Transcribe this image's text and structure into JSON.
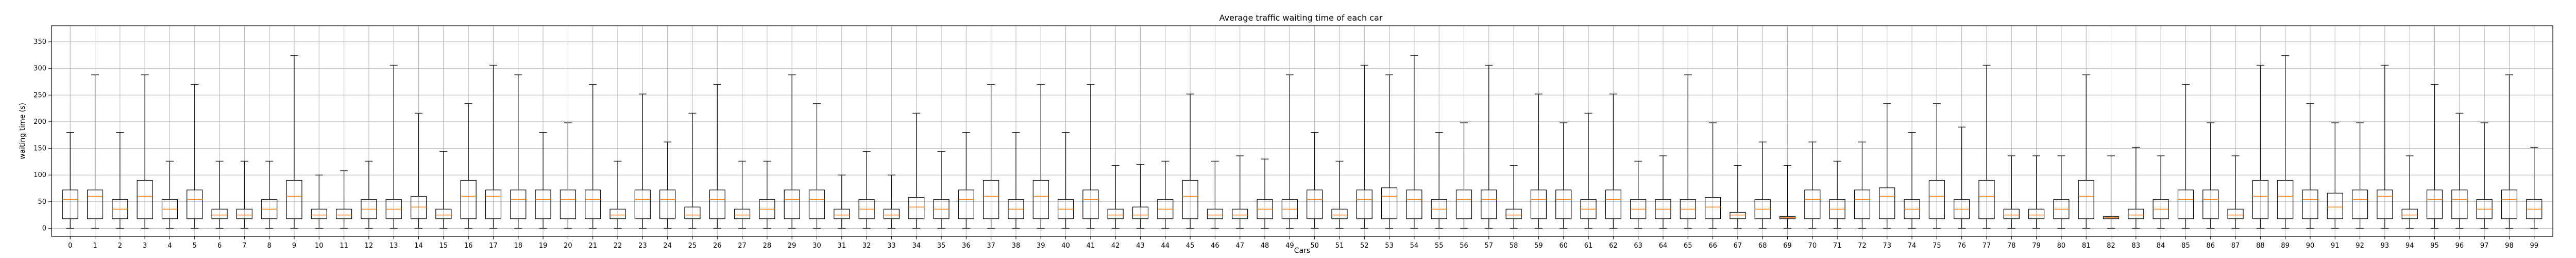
{
  "chart_data": {
    "type": "box",
    "title": "Average traffic waiting time of each car",
    "xlabel": "Cars",
    "ylabel": "waiting time (s)",
    "ylim": [
      -15,
      380
    ],
    "yticks": [
      0,
      50,
      100,
      150,
      200,
      250,
      300,
      350
    ],
    "grid": true,
    "colors": {
      "box": "#000000",
      "median": "#ff7f0e",
      "grid": "#b0b0b0"
    },
    "categories": [
      "0",
      "1",
      "2",
      "3",
      "4",
      "5",
      "6",
      "7",
      "8",
      "9",
      "10",
      "11",
      "12",
      "13",
      "14",
      "15",
      "16",
      "17",
      "18",
      "19",
      "20",
      "21",
      "22",
      "23",
      "24",
      "25",
      "26",
      "27",
      "28",
      "29",
      "30",
      "31",
      "32",
      "33",
      "34",
      "35",
      "36",
      "37",
      "38",
      "39",
      "40",
      "41",
      "42",
      "43",
      "44",
      "45",
      "46",
      "47",
      "48",
      "49",
      "50",
      "51",
      "52",
      "53",
      "54",
      "55",
      "56",
      "57",
      "58",
      "59",
      "60",
      "61",
      "62",
      "63",
      "64",
      "65",
      "66",
      "67",
      "68",
      "69",
      "70",
      "71",
      "72",
      "73",
      "74",
      "75",
      "76",
      "77",
      "78",
      "79",
      "80",
      "81",
      "82",
      "83",
      "84",
      "85",
      "86",
      "87",
      "88",
      "89",
      "90",
      "91",
      "92",
      "93",
      "94",
      "95",
      "96",
      "97",
      "98",
      "99"
    ],
    "boxes": [
      {
        "min": 0,
        "q1": 18,
        "median": 54,
        "q3": 72,
        "max": 180
      },
      {
        "min": 0,
        "q1": 18,
        "median": 60,
        "q3": 72,
        "max": 288
      },
      {
        "min": 0,
        "q1": 18,
        "median": 36,
        "q3": 54,
        "max": 180
      },
      {
        "min": 0,
        "q1": 18,
        "median": 60,
        "q3": 90,
        "max": 288
      },
      {
        "min": 0,
        "q1": 18,
        "median": 36,
        "q3": 54,
        "max": 126
      },
      {
        "min": 0,
        "q1": 18,
        "median": 54,
        "q3": 72,
        "max": 270
      },
      {
        "min": 0,
        "q1": 18,
        "median": 25,
        "q3": 36,
        "max": 126
      },
      {
        "min": 0,
        "q1": 18,
        "median": 25,
        "q3": 36,
        "max": 126
      },
      {
        "min": 0,
        "q1": 18,
        "median": 36,
        "q3": 54,
        "max": 126
      },
      {
        "min": 0,
        "q1": 18,
        "median": 60,
        "q3": 90,
        "max": 324
      },
      {
        "min": 0,
        "q1": 18,
        "median": 25,
        "q3": 36,
        "max": 100
      },
      {
        "min": 0,
        "q1": 18,
        "median": 25,
        "q3": 36,
        "max": 108
      },
      {
        "min": 0,
        "q1": 18,
        "median": 36,
        "q3": 54,
        "max": 126
      },
      {
        "min": 0,
        "q1": 18,
        "median": 36,
        "q3": 54,
        "max": 306
      },
      {
        "min": 0,
        "q1": 18,
        "median": 40,
        "q3": 60,
        "max": 216
      },
      {
        "min": 0,
        "q1": 18,
        "median": 25,
        "q3": 36,
        "max": 144
      },
      {
        "min": 0,
        "q1": 18,
        "median": 60,
        "q3": 90,
        "max": 234
      },
      {
        "min": 0,
        "q1": 18,
        "median": 60,
        "q3": 72,
        "max": 306
      },
      {
        "min": 0,
        "q1": 18,
        "median": 54,
        "q3": 72,
        "max": 288
      },
      {
        "min": 0,
        "q1": 18,
        "median": 54,
        "q3": 72,
        "max": 180
      },
      {
        "min": 0,
        "q1": 18,
        "median": 54,
        "q3": 72,
        "max": 198
      },
      {
        "min": 0,
        "q1": 18,
        "median": 54,
        "q3": 72,
        "max": 270
      },
      {
        "min": 0,
        "q1": 18,
        "median": 25,
        "q3": 36,
        "max": 126
      },
      {
        "min": 0,
        "q1": 18,
        "median": 54,
        "q3": 72,
        "max": 252
      },
      {
        "min": 0,
        "q1": 18,
        "median": 54,
        "q3": 72,
        "max": 162
      },
      {
        "min": 0,
        "q1": 18,
        "median": 25,
        "q3": 40,
        "max": 216
      },
      {
        "min": 0,
        "q1": 18,
        "median": 54,
        "q3": 72,
        "max": 270
      },
      {
        "min": 0,
        "q1": 18,
        "median": 25,
        "q3": 36,
        "max": 126
      },
      {
        "min": 0,
        "q1": 18,
        "median": 36,
        "q3": 54,
        "max": 126
      },
      {
        "min": 0,
        "q1": 18,
        "median": 54,
        "q3": 72,
        "max": 288
      },
      {
        "min": 0,
        "q1": 18,
        "median": 54,
        "q3": 72,
        "max": 234
      },
      {
        "min": 0,
        "q1": 18,
        "median": 25,
        "q3": 36,
        "max": 100
      },
      {
        "min": 0,
        "q1": 18,
        "median": 36,
        "q3": 54,
        "max": 144
      },
      {
        "min": 0,
        "q1": 18,
        "median": 25,
        "q3": 36,
        "max": 100
      },
      {
        "min": 0,
        "q1": 18,
        "median": 40,
        "q3": 58,
        "max": 216
      },
      {
        "min": 0,
        "q1": 18,
        "median": 36,
        "q3": 54,
        "max": 144
      },
      {
        "min": 0,
        "q1": 18,
        "median": 54,
        "q3": 72,
        "max": 180
      },
      {
        "min": 0,
        "q1": 18,
        "median": 60,
        "q3": 90,
        "max": 270
      },
      {
        "min": 0,
        "q1": 18,
        "median": 36,
        "q3": 54,
        "max": 180
      },
      {
        "min": 0,
        "q1": 18,
        "median": 60,
        "q3": 90,
        "max": 270
      },
      {
        "min": 0,
        "q1": 18,
        "median": 36,
        "q3": 54,
        "max": 180
      },
      {
        "min": 0,
        "q1": 18,
        "median": 54,
        "q3": 72,
        "max": 270
      },
      {
        "min": 0,
        "q1": 18,
        "median": 25,
        "q3": 36,
        "max": 118
      },
      {
        "min": 0,
        "q1": 18,
        "median": 25,
        "q3": 40,
        "max": 120
      },
      {
        "min": 0,
        "q1": 18,
        "median": 36,
        "q3": 54,
        "max": 126
      },
      {
        "min": 0,
        "q1": 18,
        "median": 60,
        "q3": 90,
        "max": 252
      },
      {
        "min": 0,
        "q1": 18,
        "median": 25,
        "q3": 36,
        "max": 126
      },
      {
        "min": 0,
        "q1": 18,
        "median": 25,
        "q3": 36,
        "max": 136
      },
      {
        "min": 0,
        "q1": 18,
        "median": 36,
        "q3": 54,
        "max": 130
      },
      {
        "min": 0,
        "q1": 18,
        "median": 36,
        "q3": 54,
        "max": 288
      },
      {
        "min": 0,
        "q1": 18,
        "median": 54,
        "q3": 72,
        "max": 180
      },
      {
        "min": 0,
        "q1": 18,
        "median": 25,
        "q3": 36,
        "max": 126
      },
      {
        "min": 0,
        "q1": 18,
        "median": 54,
        "q3": 72,
        "max": 306
      },
      {
        "min": 0,
        "q1": 18,
        "median": 60,
        "q3": 76,
        "max": 288
      },
      {
        "min": 0,
        "q1": 18,
        "median": 54,
        "q3": 72,
        "max": 324
      },
      {
        "min": 0,
        "q1": 18,
        "median": 36,
        "q3": 54,
        "max": 180
      },
      {
        "min": 0,
        "q1": 18,
        "median": 54,
        "q3": 72,
        "max": 198
      },
      {
        "min": 0,
        "q1": 18,
        "median": 54,
        "q3": 72,
        "max": 306
      },
      {
        "min": 0,
        "q1": 18,
        "median": 25,
        "q3": 36,
        "max": 118
      },
      {
        "min": 0,
        "q1": 18,
        "median": 54,
        "q3": 72,
        "max": 252
      },
      {
        "min": 0,
        "q1": 18,
        "median": 54,
        "q3": 72,
        "max": 198
      },
      {
        "min": 0,
        "q1": 18,
        "median": 36,
        "q3": 54,
        "max": 216
      },
      {
        "min": 0,
        "q1": 18,
        "median": 54,
        "q3": 72,
        "max": 252
      },
      {
        "min": 0,
        "q1": 18,
        "median": 36,
        "q3": 54,
        "max": 126
      },
      {
        "min": 0,
        "q1": 18,
        "median": 36,
        "q3": 54,
        "max": 136
      },
      {
        "min": 0,
        "q1": 18,
        "median": 36,
        "q3": 54,
        "max": 288
      },
      {
        "min": 0,
        "q1": 18,
        "median": 40,
        "q3": 58,
        "max": 198
      },
      {
        "min": 0,
        "q1": 18,
        "median": 25,
        "q3": 30,
        "max": 118
      },
      {
        "min": 0,
        "q1": 18,
        "median": 36,
        "q3": 54,
        "max": 162
      },
      {
        "min": 0,
        "q1": 18,
        "median": 20,
        "q3": 22,
        "max": 118
      },
      {
        "min": 0,
        "q1": 18,
        "median": 54,
        "q3": 72,
        "max": 162
      },
      {
        "min": 0,
        "q1": 18,
        "median": 36,
        "q3": 54,
        "max": 126
      },
      {
        "min": 0,
        "q1": 18,
        "median": 54,
        "q3": 72,
        "max": 162
      },
      {
        "min": 0,
        "q1": 18,
        "median": 60,
        "q3": 76,
        "max": 234
      },
      {
        "min": 0,
        "q1": 18,
        "median": 36,
        "q3": 54,
        "max": 180
      },
      {
        "min": 0,
        "q1": 18,
        "median": 60,
        "q3": 90,
        "max": 234
      },
      {
        "min": 0,
        "q1": 18,
        "median": 36,
        "q3": 54,
        "max": 190
      },
      {
        "min": 0,
        "q1": 18,
        "median": 60,
        "q3": 90,
        "max": 306
      },
      {
        "min": 0,
        "q1": 18,
        "median": 25,
        "q3": 36,
        "max": 136
      },
      {
        "min": 0,
        "q1": 18,
        "median": 25,
        "q3": 36,
        "max": 136
      },
      {
        "min": 0,
        "q1": 18,
        "median": 36,
        "q3": 54,
        "max": 136
      },
      {
        "min": 0,
        "q1": 18,
        "median": 60,
        "q3": 90,
        "max": 288
      },
      {
        "min": 0,
        "q1": 18,
        "median": 20,
        "q3": 22,
        "max": 136
      },
      {
        "min": 0,
        "q1": 18,
        "median": 25,
        "q3": 36,
        "max": 152
      },
      {
        "min": 0,
        "q1": 18,
        "median": 36,
        "q3": 54,
        "max": 136
      },
      {
        "min": 0,
        "q1": 18,
        "median": 54,
        "q3": 72,
        "max": 270
      },
      {
        "min": 0,
        "q1": 18,
        "median": 54,
        "q3": 72,
        "max": 198
      },
      {
        "min": 0,
        "q1": 18,
        "median": 25,
        "q3": 36,
        "max": 136
      },
      {
        "min": 0,
        "q1": 18,
        "median": 60,
        "q3": 90,
        "max": 306
      },
      {
        "min": 0,
        "q1": 18,
        "median": 60,
        "q3": 90,
        "max": 324
      },
      {
        "min": 0,
        "q1": 18,
        "median": 54,
        "q3": 72,
        "max": 234
      },
      {
        "min": 0,
        "q1": 18,
        "median": 40,
        "q3": 66,
        "max": 198
      },
      {
        "min": 0,
        "q1": 18,
        "median": 54,
        "q3": 72,
        "max": 198
      },
      {
        "min": 0,
        "q1": 18,
        "median": 60,
        "q3": 72,
        "max": 306
      },
      {
        "min": 0,
        "q1": 18,
        "median": 25,
        "q3": 36,
        "max": 136
      },
      {
        "min": 0,
        "q1": 18,
        "median": 54,
        "q3": 72,
        "max": 270
      },
      {
        "min": 0,
        "q1": 18,
        "median": 54,
        "q3": 72,
        "max": 216
      },
      {
        "min": 0,
        "q1": 18,
        "median": 36,
        "q3": 54,
        "max": 198
      },
      {
        "min": 0,
        "q1": 18,
        "median": 54,
        "q3": 72,
        "max": 288
      },
      {
        "min": 0,
        "q1": 18,
        "median": 36,
        "q3": 54,
        "max": 152
      }
    ]
  }
}
